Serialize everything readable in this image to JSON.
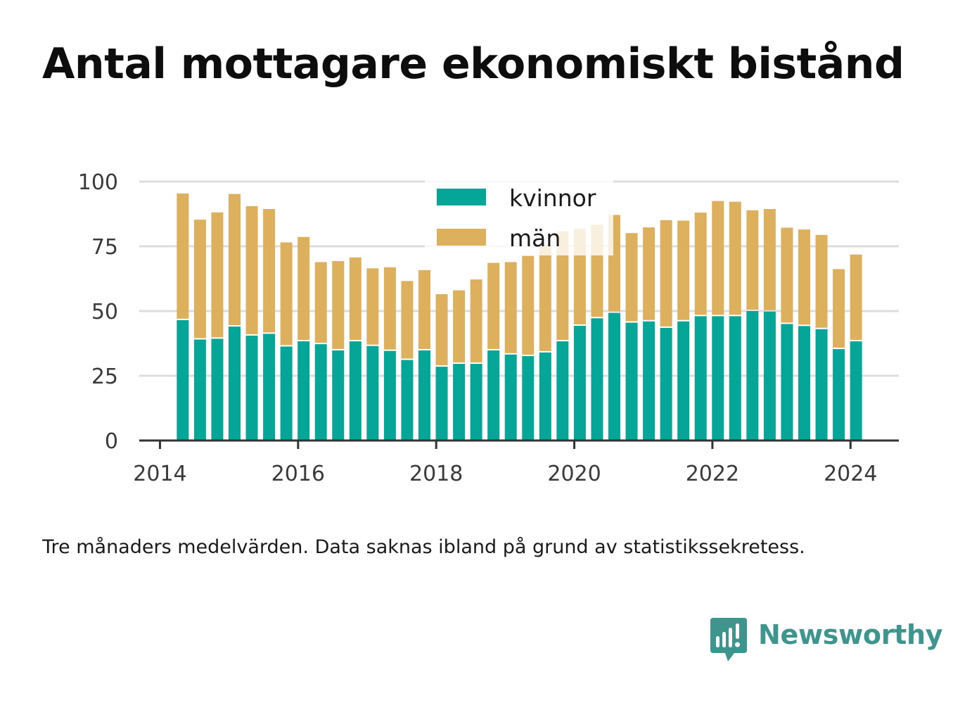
{
  "title": "Antal mottagare ekonomiskt bistånd",
  "note": "Tre månaders medelvärden. Data saknas ibland på grund av statistikssekretess.",
  "brand": {
    "name": "Newsworthy"
  },
  "colors": {
    "kvinnor": "#05a598",
    "man": "#dcb05d",
    "grid": "#dddddd",
    "axis": "#333333",
    "brand": "#3e958e"
  },
  "chart_data": {
    "type": "bar",
    "stacked": true,
    "title": "Antal mottagare ekonomiskt bistånd",
    "xlabel": "",
    "ylabel": "",
    "ylim": [
      0,
      100
    ],
    "xlim": [
      2013.7,
      2024.7
    ],
    "yticks": [
      0,
      25,
      50,
      75,
      100
    ],
    "xticks": [
      2014,
      2016,
      2018,
      2020,
      2022,
      2024
    ],
    "grid": true,
    "legend": "top-center",
    "x": [
      2014.33,
      2014.58,
      2014.83,
      2015.08,
      2015.33,
      2015.58,
      2015.83,
      2016.08,
      2016.33,
      2016.58,
      2016.83,
      2017.08,
      2017.33,
      2017.58,
      2017.83,
      2018.08,
      2018.33,
      2018.58,
      2018.83,
      2019.08,
      2019.33,
      2019.58,
      2019.83,
      2020.08,
      2020.33,
      2020.58,
      2020.83,
      2021.08,
      2021.33,
      2021.58,
      2021.83,
      2022.08,
      2022.33,
      2022.58,
      2022.83,
      2023.08,
      2023.33,
      2023.58,
      2023.83,
      2024.08
    ],
    "series": [
      {
        "name": "kvinnor",
        "color": "#05a598",
        "values": [
          46.5,
          39,
          39.3,
          44,
          40.5,
          41.2,
          36.3,
          38.3,
          37.2,
          34.8,
          38.3,
          36.5,
          34.6,
          31.1,
          34.8,
          28.5,
          29.6,
          29.6,
          34.8,
          33.2,
          32.6,
          34,
          38.3,
          44.3,
          47.2,
          49.3,
          45.5,
          46,
          43.5,
          46,
          48,
          48,
          48,
          50,
          49.8,
          45,
          44.2,
          43,
          35.3,
          38.3
        ]
      },
      {
        "name": "män",
        "color": "#dcb05d",
        "values": [
          48.9,
          46.3,
          48.8,
          51.2,
          50,
          48.2,
          40.2,
          40.3,
          31.7,
          34.5,
          32.4,
          30,
          32.3,
          30.5,
          31,
          28,
          28.4,
          32.6,
          33.8,
          35.7,
          38.7,
          41.7,
          42.4,
          37.4,
          36.1,
          37.8,
          34.6,
          36.3,
          41.6,
          38.9,
          40,
          44.5,
          44.2,
          38.9,
          39.6,
          37.2,
          37.3,
          36.4,
          30.9,
          33.5
        ]
      }
    ]
  }
}
